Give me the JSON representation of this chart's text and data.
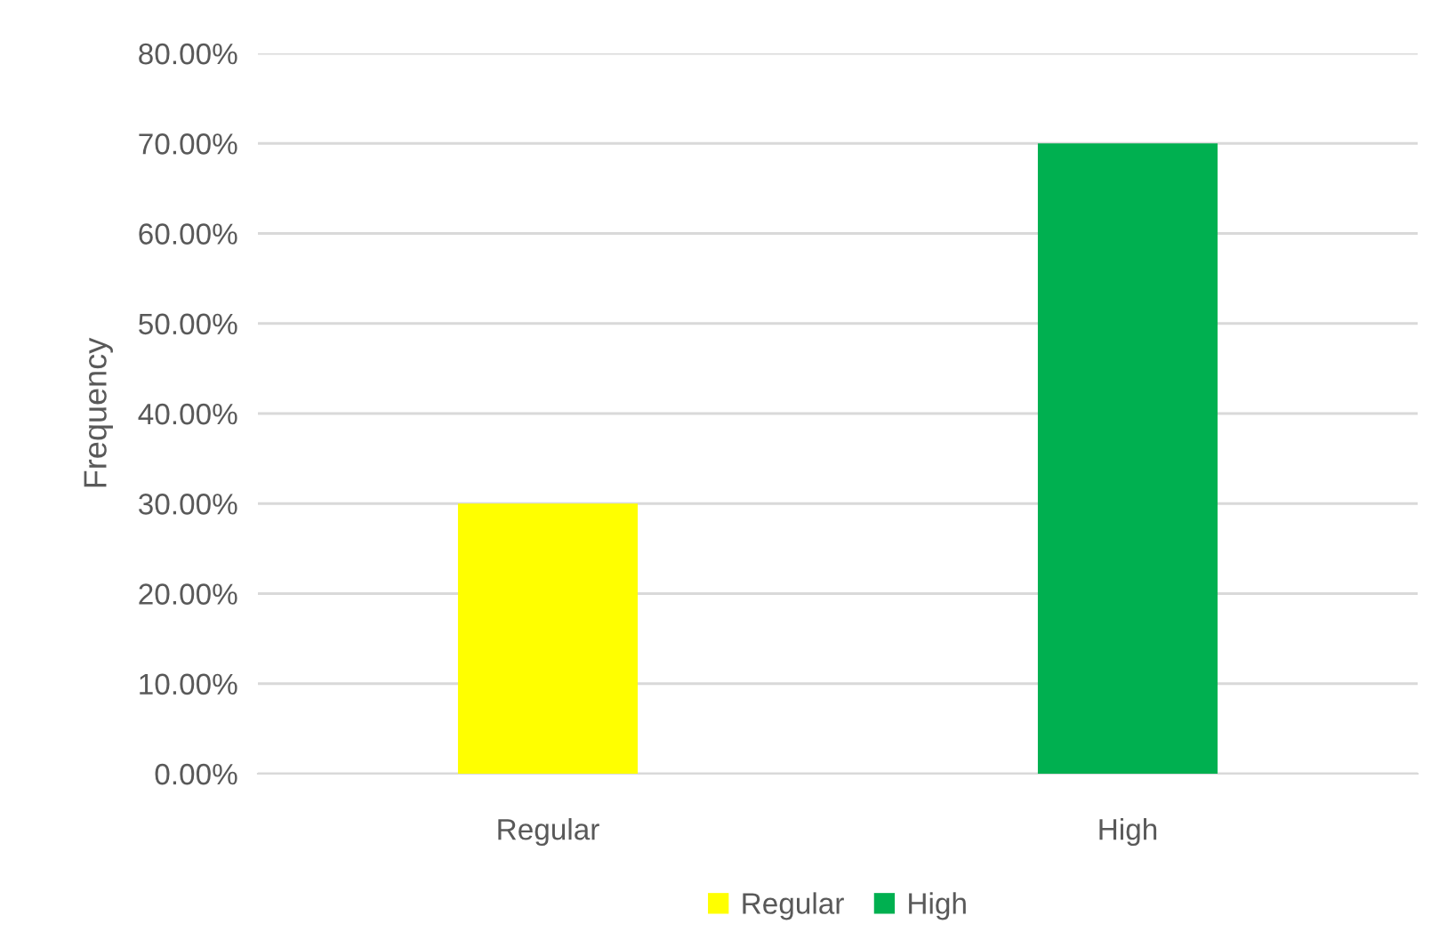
{
  "chart_data": {
    "type": "bar",
    "ylabel": "Frequency",
    "categories": [
      "Regular",
      "High"
    ],
    "series": [
      {
        "name": "Regular",
        "color": "#ffff00",
        "values": [
          30,
          null
        ]
      },
      {
        "name": "High",
        "color": "#00b050",
        "values": [
          null,
          70
        ]
      }
    ],
    "ylim": [
      0,
      80
    ],
    "yticks": [
      {
        "value": 0,
        "label": "0.00%"
      },
      {
        "value": 10,
        "label": "10.00%"
      },
      {
        "value": 20,
        "label": "20.00%"
      },
      {
        "value": 30,
        "label": "30.00%"
      },
      {
        "value": 40,
        "label": "40.00%"
      },
      {
        "value": 50,
        "label": "50.00%"
      },
      {
        "value": 60,
        "label": "60.00%"
      },
      {
        "value": 70,
        "label": "70.00%"
      },
      {
        "value": 80,
        "label": "80.00%"
      }
    ],
    "grid": "y",
    "legend": "bottom"
  }
}
